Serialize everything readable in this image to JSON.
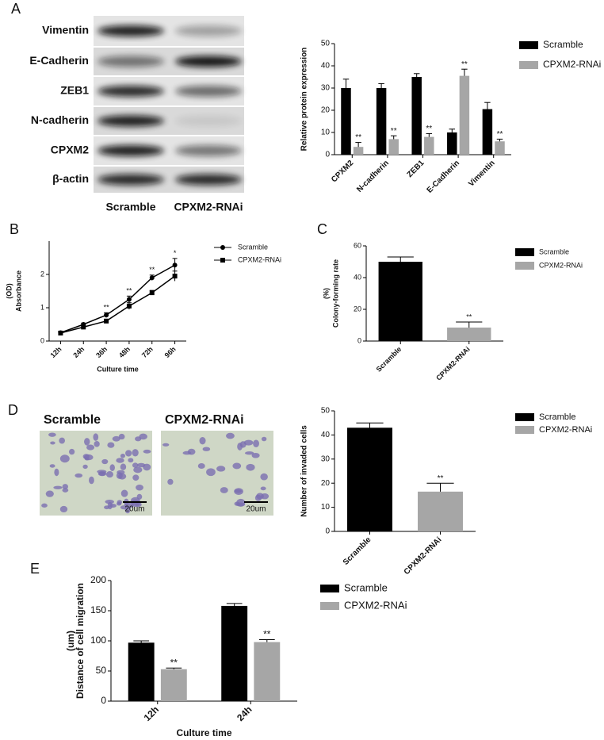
{
  "panel_labels": [
    "A",
    "B",
    "C",
    "D",
    "E"
  ],
  "blot": {
    "rows": [
      "Vimentin",
      "E-Cadherin",
      "ZEB1",
      "N-cadherin",
      "CPXM2",
      "β-actin"
    ],
    "columns": [
      "Scramble",
      "CPXM2-RNAi"
    ]
  },
  "micrographs": {
    "labels": [
      "Scramble",
      "CPXM2-RNAi"
    ],
    "scale_bar": "20um"
  },
  "chart_data": [
    {
      "type": "bar",
      "ylabel": [
        "Relative protein expression"
      ],
      "categories": [
        "CPXM2",
        "N-cadherin",
        "ZEB1",
        "E-Cadherin",
        "Vimentin"
      ],
      "series": [
        {
          "name": "Scramble",
          "color": "#000000",
          "values": [
            30,
            30,
            35,
            10,
            20.5
          ],
          "errors": [
            4,
            2,
            1.5,
            1.5,
            3
          ]
        },
        {
          "name": "CPXM2-RNAi",
          "color": "#a6a6a6",
          "values": [
            3.5,
            7,
            8,
            35.5,
            6
          ],
          "errors": [
            2,
            1.5,
            1.5,
            3,
            1
          ],
          "significance": [
            "**",
            "**",
            "**",
            "**",
            "**"
          ]
        }
      ],
      "ylim": [
        0,
        50
      ],
      "yticks": [
        0,
        10,
        20,
        30,
        40,
        50
      ]
    },
    {
      "type": "line",
      "xlabel": "Culture time",
      "ylabel": [
        "Absorbance",
        "(OD)"
      ],
      "categories": [
        "12h",
        "24h",
        "36h",
        "48h",
        "72h",
        "96h"
      ],
      "series": [
        {
          "name": "Scramble",
          "color": "#000000",
          "marker": "circle",
          "values": [
            0.25,
            0.5,
            0.78,
            1.25,
            1.9,
            2.28
          ],
          "errors": [
            0.03,
            0.04,
            0.07,
            0.1,
            0.08,
            0.2
          ]
        },
        {
          "name": "CPXM2-RNAi",
          "color": "#000000",
          "marker": "square",
          "values": [
            0.24,
            0.42,
            0.6,
            1.05,
            1.45,
            1.95
          ],
          "errors": [
            0.03,
            0.03,
            0.05,
            0.1,
            0.07,
            0.15
          ]
        }
      ],
      "significance": [
        null,
        null,
        "**",
        "**",
        "**",
        "*"
      ],
      "ylim": [
        0,
        3
      ],
      "yticks": [
        0,
        1,
        2
      ]
    },
    {
      "type": "bar",
      "ylabel": [
        "Colony-forming rate",
        "(%)"
      ],
      "categories": [
        "Scramble",
        "CPXM2-RNAi"
      ],
      "values": [
        50,
        8.5
      ],
      "errors": [
        3,
        3.5
      ],
      "colors": [
        "#000000",
        "#a6a6a6"
      ],
      "significance": [
        null,
        "**"
      ],
      "ylim": [
        0,
        60
      ],
      "yticks": [
        0,
        20,
        40,
        60
      ]
    },
    {
      "type": "bar",
      "ylabel": [
        "Number of invaded cells"
      ],
      "categories": [
        "Scramble",
        "CPXM2-RNAi"
      ],
      "values": [
        43,
        16.5
      ],
      "errors": [
        2,
        3.5
      ],
      "colors": [
        "#000000",
        "#a6a6a6"
      ],
      "significance": [
        null,
        "**"
      ],
      "ylim": [
        0,
        50
      ],
      "yticks": [
        0,
        10,
        20,
        30,
        40,
        50
      ]
    },
    {
      "type": "bar",
      "xlabel": "Culture time",
      "ylabel": [
        "Distance of cell migration",
        "(um)"
      ],
      "categories": [
        "12h",
        "24h"
      ],
      "series": [
        {
          "name": "Scramble",
          "color": "#000000",
          "values": [
            97,
            158
          ],
          "errors": [
            3,
            4
          ]
        },
        {
          "name": "CPXM2-RNAi",
          "color": "#a6a6a6",
          "values": [
            53,
            98
          ],
          "errors": [
            2,
            4
          ],
          "significance": [
            "**",
            "**"
          ]
        }
      ],
      "ylim": [
        0,
        200
      ],
      "yticks": [
        0,
        50,
        100,
        150,
        200
      ]
    }
  ]
}
